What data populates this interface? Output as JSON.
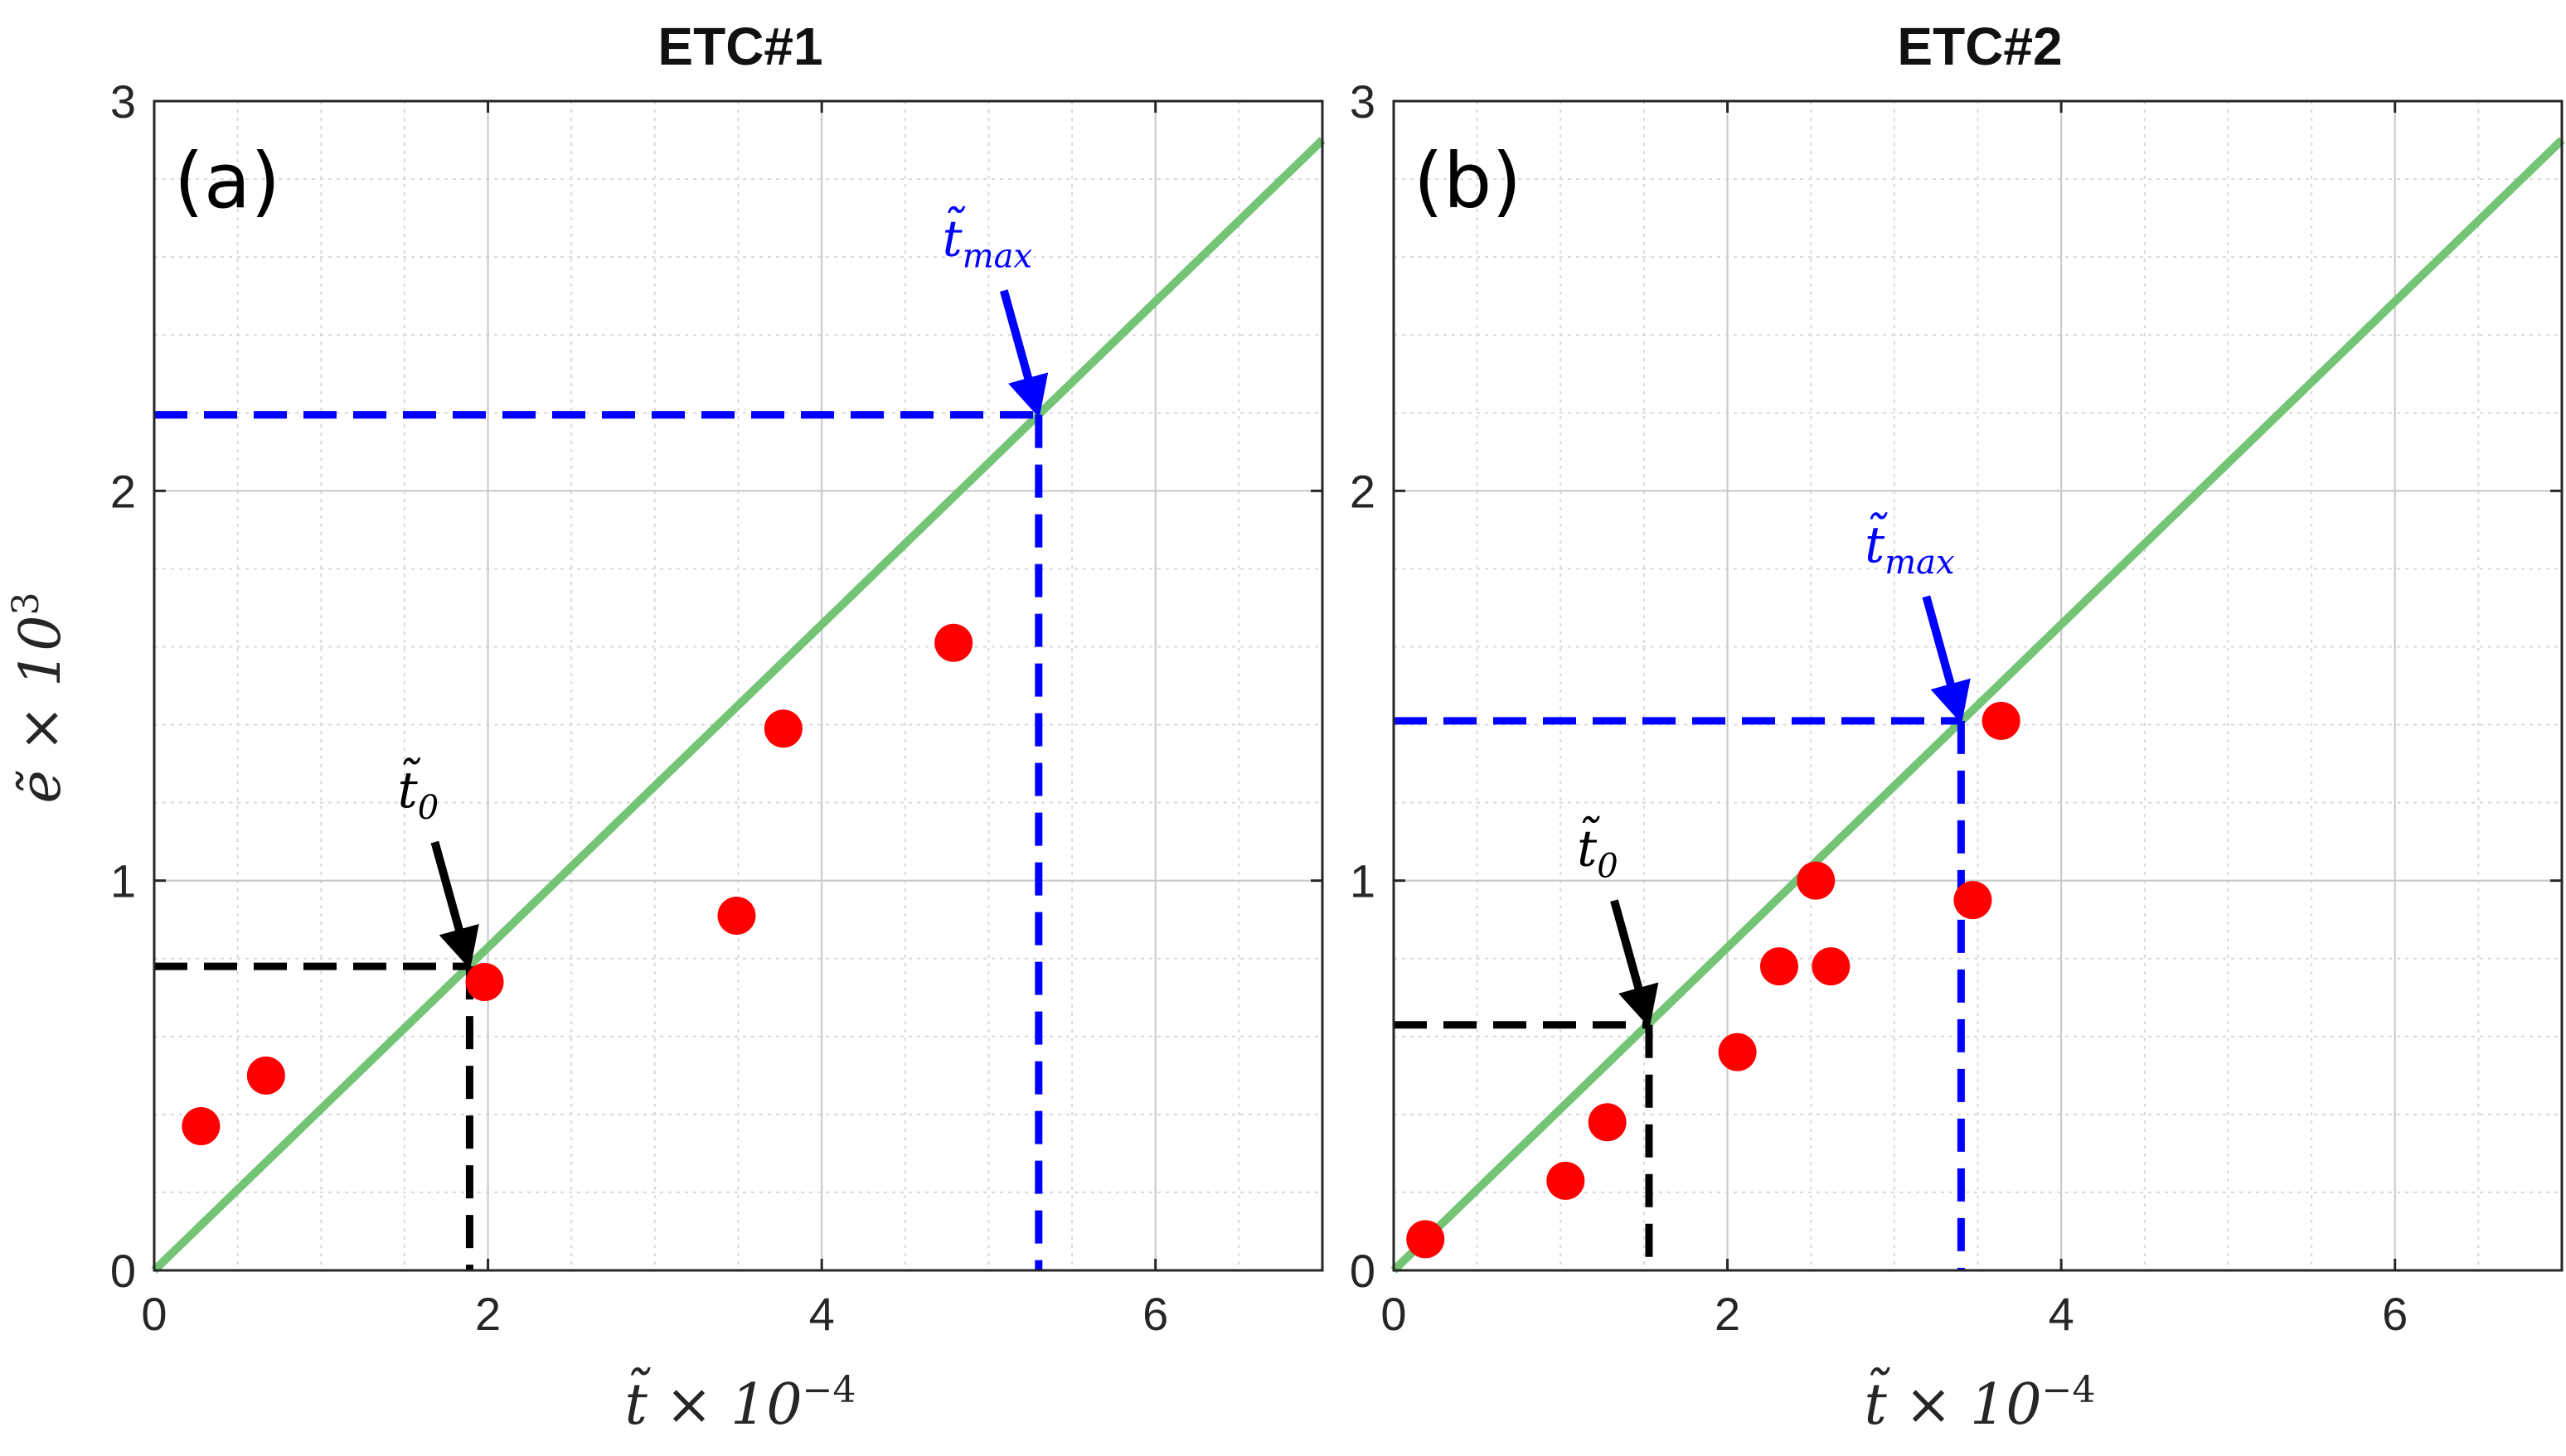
{
  "figure": {
    "ylabel": "ẽ × 10",
    "ylabel_exp": "3",
    "xlabel": "t̃ × 10",
    "xlabel_exp": "−4"
  },
  "chart_data": [
    {
      "type": "scatter",
      "title": "ETC#1",
      "panel_label": "(a)",
      "xlim": [
        0,
        7
      ],
      "ylim": [
        0,
        3
      ],
      "xticks": [
        "0",
        "2",
        "4",
        "6"
      ],
      "yticks": [
        "0",
        "1",
        "2",
        "3"
      ],
      "grid": true,
      "points_color": "#ff0000",
      "points": [
        {
          "x": 0.28,
          "y": 0.37
        },
        {
          "x": 0.67,
          "y": 0.5
        },
        {
          "x": 1.98,
          "y": 0.74
        },
        {
          "x": 3.49,
          "y": 0.91
        },
        {
          "x": 3.77,
          "y": 1.39
        },
        {
          "x": 4.79,
          "y": 1.61
        }
      ],
      "fit_line": {
        "color": "#74c476",
        "slope": 0.4143,
        "intercept": 0
      },
      "markers": [
        {
          "name": "t0",
          "label": "t̃",
          "sub": "0",
          "x": 1.89,
          "y": 0.78,
          "color": "#000000"
        },
        {
          "name": "tmax",
          "label": "t̃",
          "sub": "max",
          "x": 5.3,
          "y": 2.195,
          "color": "#0000ff"
        }
      ]
    },
    {
      "type": "scatter",
      "title": "ETC#2",
      "panel_label": "(b)",
      "xlim": [
        0,
        7
      ],
      "ylim": [
        0,
        3
      ],
      "xticks": [
        "0",
        "2",
        "4",
        "6"
      ],
      "yticks": [
        "0",
        "1",
        "2",
        "3"
      ],
      "grid": true,
      "points_color": "#ff0000",
      "points": [
        {
          "x": 0.19,
          "y": 0.08
        },
        {
          "x": 1.03,
          "y": 0.23
        },
        {
          "x": 1.28,
          "y": 0.38
        },
        {
          "x": 2.06,
          "y": 0.56
        },
        {
          "x": 2.31,
          "y": 0.78
        },
        {
          "x": 2.53,
          "y": 1.0
        },
        {
          "x": 2.62,
          "y": 0.78
        },
        {
          "x": 3.47,
          "y": 0.95
        },
        {
          "x": 3.64,
          "y": 1.41
        }
      ],
      "fit_line": {
        "color": "#74c476",
        "slope": 0.4143,
        "intercept": 0
      },
      "markers": [
        {
          "name": "t0",
          "label": "t̃",
          "sub": "0",
          "x": 1.53,
          "y": 0.63,
          "color": "#000000"
        },
        {
          "name": "tmax",
          "label": "t̃",
          "sub": "max",
          "x": 3.4,
          "y": 1.41,
          "color": "#0000ff"
        }
      ]
    }
  ]
}
